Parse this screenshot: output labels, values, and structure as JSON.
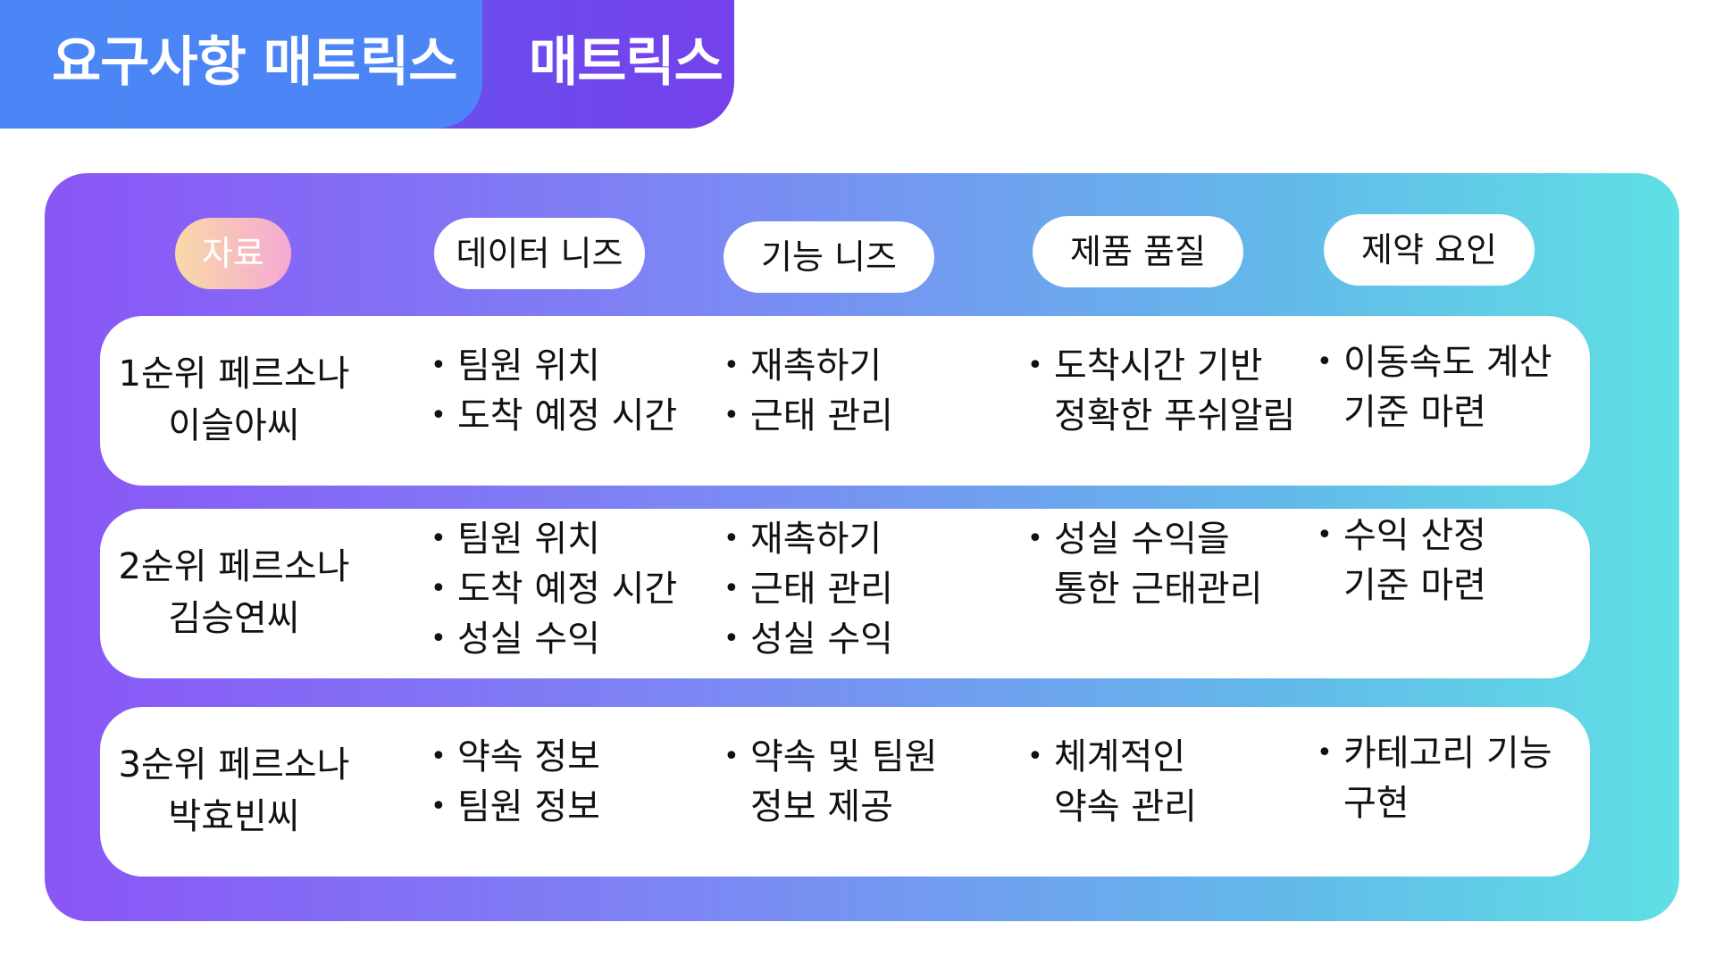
{
  "title": {
    "main": "요구사항 매트릭스",
    "secondary": "매트릭스"
  },
  "headers": {
    "source": "자료",
    "data_needs": "데이터 니즈",
    "function_needs": "기능 니즈",
    "quality": "제품 품질",
    "constraints": "제약 요인"
  },
  "rows": [
    {
      "persona_rank": "1순위 페르소나",
      "persona_name": "이슬아씨",
      "data_needs": [
        "팀원 위치",
        "도착 예정 시간"
      ],
      "function_needs": [
        "재촉하기",
        "근태 관리"
      ],
      "quality": [
        "도착시간 기반",
        "정확한 푸쉬알림"
      ],
      "constraints": [
        "이동속도 계산",
        "기준 마련"
      ]
    },
    {
      "persona_rank": "2순위 페르소나",
      "persona_name": "김승연씨",
      "data_needs": [
        "팀원 위치",
        "도착 예정 시간",
        "성실 수익"
      ],
      "function_needs": [
        "재촉하기",
        "근태 관리",
        "성실 수익"
      ],
      "quality": [
        "성실 수익을",
        "통한 근태관리"
      ],
      "constraints": [
        "수익 산정",
        "기준 마련"
      ]
    },
    {
      "persona_rank": "3순위 페르소나",
      "persona_name": "박효빈씨",
      "data_needs": [
        "약속 정보",
        "팀원 정보"
      ],
      "function_needs": [
        "약속 및 팀원",
        "정보 제공"
      ],
      "quality": [
        "체계적인",
        "약속 관리"
      ],
      "constraints": [
        "카테고리 기능",
        "구현"
      ]
    }
  ]
}
